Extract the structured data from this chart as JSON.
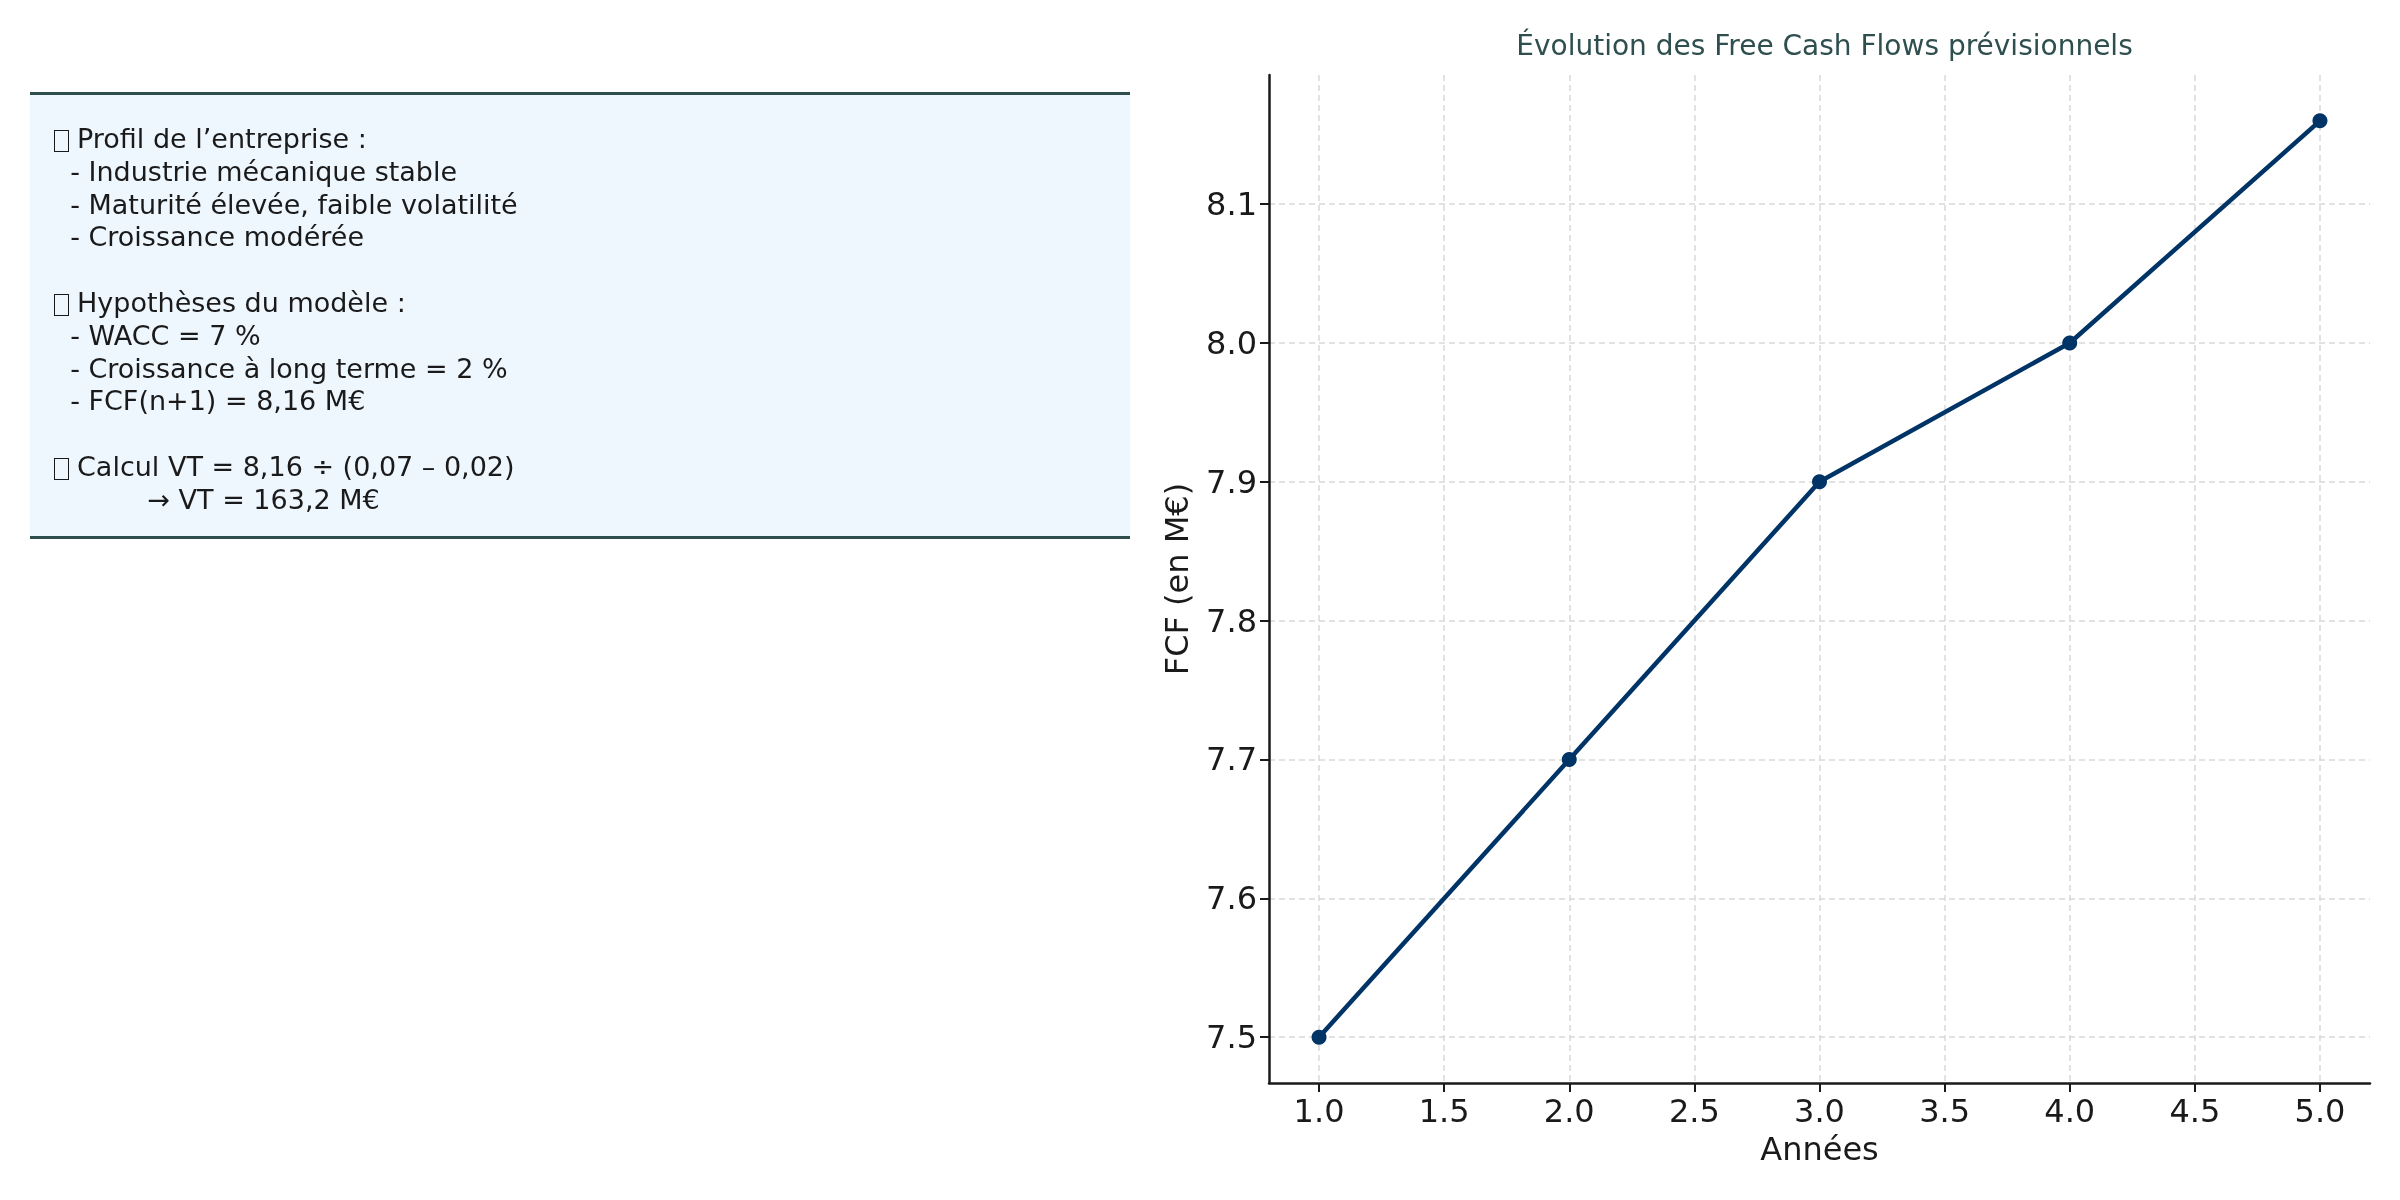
{
  "chart_data": [
    {
      "type": "other",
      "annotations": [
        "Profil de l’entreprise :\n  - Industrie mécanique stable\n  - Maturité élevée, faible volatilité\n  - Croissance modérée",
        "Hypothèses du modèle :\n  - WACC = 7 %\n  - Croissance à long terme = 2 %\n  - FCF(n+1) = 8,16 M€",
        "Calcul VT = 8,16 ÷ (0,07 – 0,02)\n           → VT = 163,2 M€"
      ]
    },
    {
      "type": "line",
      "title": "Évolution des Free Cash Flows prévisionnels",
      "xlabel": "Années",
      "ylabel": "FCF (en M€)",
      "x": [
        1,
        2,
        3,
        4,
        5
      ],
      "values": [
        7.5,
        7.7,
        7.9,
        8.0,
        8.16
      ],
      "color": "#003366",
      "xlim": [
        0.8,
        5.2
      ],
      "ylim": [
        7.467,
        8.193
      ],
      "xticks": [
        {
          "value": 1,
          "label": "1.0"
        },
        1.5,
        {
          "value": 2,
          "label": "2.0"
        },
        2.5,
        {
          "value": 3,
          "label": "3.0"
        },
        3.5,
        {
          "value": 4,
          "label": "4.0"
        },
        4.5,
        {
          "value": 5,
          "label": "5.0"
        }
      ],
      "yticks": [
        7.5,
        7.6,
        7.7,
        7.8,
        7.9,
        {
          "value": 8,
          "label": "8.0"
        },
        8.1
      ],
      "grid": true,
      "marker": "circle",
      "line_style": "solid"
    }
  ]
}
